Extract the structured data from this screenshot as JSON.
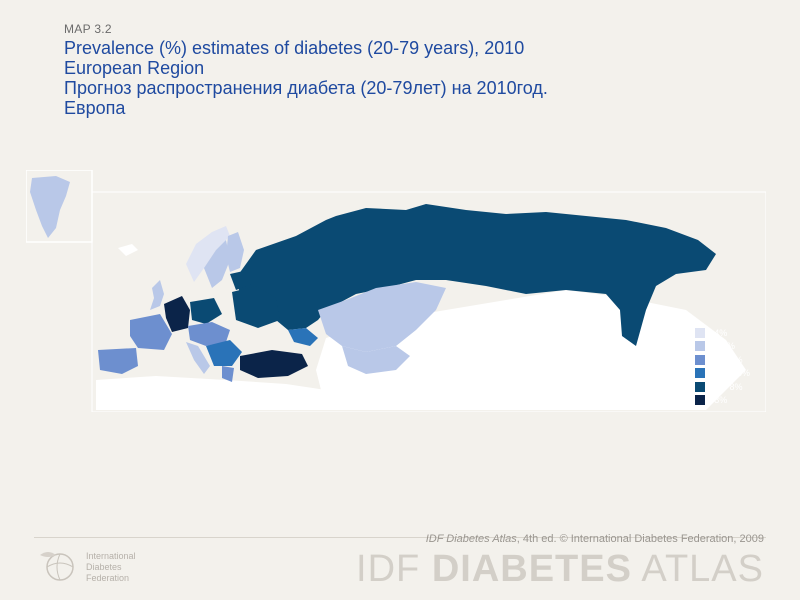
{
  "header": {
    "map_code": "MAP 3.2",
    "title_lines": [
      "Prevalence (%) estimates of diabetes (20-79 years), 2010",
      "European Region",
      "Прогноз распространения диабета (20-79лет) на 2010год.",
      "Европа"
    ]
  },
  "legend": {
    "items": [
      {
        "label": "<4%",
        "color": "#dfe4f3"
      },
      {
        "label": "4 - 6%",
        "color": "#b9c8e8"
      },
      {
        "label": "6 - 6.8%",
        "color": "#6d8fcf"
      },
      {
        "label": "6.8 - 7.6%",
        "color": "#2a73b8"
      },
      {
        "label": "7.6 - 8%",
        "color": "#0a4a73"
      },
      {
        "label": ">8%",
        "color": "#0b2449"
      }
    ]
  },
  "footer": {
    "credit_atlas": "IDF Diabetes Atlas",
    "credit_rest": ", 4th ed.  © International Diabetes Federation, 2009",
    "brand_light": "IDF ",
    "brand_bold": "DIABETES",
    "brand_tail": " ATLAS",
    "org_lines": [
      "International",
      "Diabetes",
      "Federation"
    ]
  },
  "colors": {
    "background": "#f3f1ec",
    "land_other": "#ffffff",
    "title": "#1f4aa0"
  }
}
